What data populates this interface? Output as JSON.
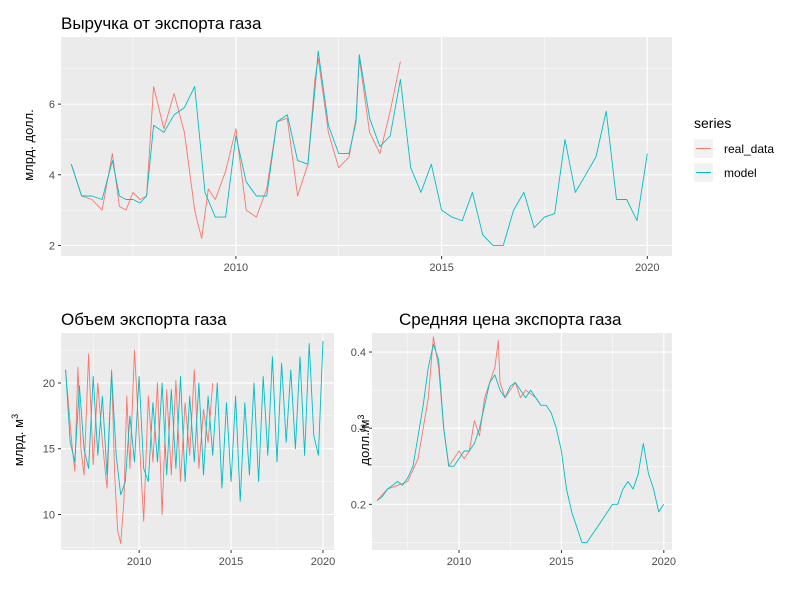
{
  "colors": {
    "real_data": "#F8766D",
    "model": "#00BFC4",
    "panel_bg": "#EBEBEB",
    "grid": "#FFFFFF"
  },
  "legend": {
    "title": "series",
    "items": [
      {
        "label": "real_data",
        "color": "#F8766D"
      },
      {
        "label": "model",
        "color": "#00BFC4"
      }
    ]
  },
  "chart_data": [
    {
      "type": "line",
      "title": "Выручка от экспорта газа",
      "ylabel": "млрд. долл.",
      "ylabel_sup": "",
      "xlim": [
        2005.75,
        2020.6
      ],
      "ylim": [
        1.7,
        7.9
      ],
      "xticks": [
        2010,
        2015,
        2020
      ],
      "yticks": [
        2,
        4,
        6
      ],
      "ytick_labels": [
        "2",
        "4",
        "6"
      ],
      "series": [
        {
          "name": "real_data",
          "x": [
            2006.0,
            2006.25,
            2006.5,
            2006.75,
            2007.0,
            2007.17,
            2007.33,
            2007.5,
            2007.67,
            2007.83,
            2008.0,
            2008.25,
            2008.5,
            2008.75,
            2009.0,
            2009.08,
            2009.17,
            2009.33,
            2009.5,
            2009.75,
            2010.0,
            2010.25,
            2010.5,
            2010.75,
            2011.0,
            2011.25,
            2011.5,
            2011.75,
            2011.92,
            2012.0,
            2012.25,
            2012.5,
            2012.75,
            2012.92,
            2013.0,
            2013.25,
            2013.5,
            2013.75,
            2014.0
          ],
          "values": [
            4.3,
            3.4,
            3.3,
            3.0,
            4.6,
            3.1,
            3.0,
            3.5,
            3.3,
            3.4,
            6.5,
            5.3,
            6.3,
            5.2,
            3.0,
            2.6,
            2.2,
            3.6,
            3.3,
            4.1,
            5.3,
            3.0,
            2.8,
            3.6,
            5.5,
            5.6,
            3.4,
            4.3,
            6.7,
            7.3,
            5.2,
            4.2,
            4.5,
            5.6,
            7.3,
            5.2,
            4.6,
            5.8,
            7.2
          ]
        },
        {
          "name": "model",
          "x": [
            2006.0,
            2006.25,
            2006.5,
            2006.75,
            2007.0,
            2007.17,
            2007.33,
            2007.5,
            2007.67,
            2007.83,
            2008.0,
            2008.25,
            2008.5,
            2008.75,
            2009.0,
            2009.25,
            2009.5,
            2009.75,
            2010.0,
            2010.25,
            2010.5,
            2010.75,
            2011.0,
            2011.25,
            2011.5,
            2011.75,
            2011.92,
            2012.0,
            2012.25,
            2012.5,
            2012.75,
            2012.92,
            2013.0,
            2013.25,
            2013.5,
            2013.75,
            2014.0,
            2014.25,
            2014.5,
            2014.75,
            2015.0,
            2015.25,
            2015.5,
            2015.75,
            2016.0,
            2016.25,
            2016.5,
            2016.75,
            2017.0,
            2017.25,
            2017.5,
            2017.75,
            2018.0,
            2018.25,
            2018.5,
            2018.75,
            2019.0,
            2019.25,
            2019.5,
            2019.75,
            2020.0
          ],
          "values": [
            4.3,
            3.4,
            3.4,
            3.3,
            4.4,
            3.4,
            3.3,
            3.3,
            3.2,
            3.4,
            5.4,
            5.2,
            5.7,
            5.9,
            6.5,
            3.5,
            2.8,
            2.8,
            5.1,
            3.8,
            3.4,
            3.4,
            5.5,
            5.7,
            4.4,
            4.3,
            6.4,
            7.5,
            5.4,
            4.6,
            4.6,
            5.5,
            7.4,
            5.6,
            4.8,
            5.1,
            6.7,
            4.2,
            3.5,
            4.3,
            3.0,
            2.8,
            2.7,
            3.5,
            2.3,
            2.0,
            2.0,
            3.0,
            3.5,
            2.5,
            2.8,
            2.9,
            5.0,
            3.5,
            4.0,
            4.5,
            5.8,
            3.3,
            3.3,
            2.7,
            4.6
          ]
        }
      ]
    },
    {
      "type": "line",
      "title": "Объем экспорта газа",
      "ylabel": "млрд. м",
      "ylabel_sup": "3",
      "xlim": [
        2005.75,
        2020.6
      ],
      "ylim": [
        7.3,
        23.8
      ],
      "xticks": [
        2010,
        2015,
        2020
      ],
      "yticks": [
        10,
        15,
        20
      ],
      "ytick_labels": [
        "10",
        "15",
        "20"
      ],
      "series": [
        {
          "name": "real_data",
          "x": [
            2006.0,
            2006.33,
            2006.5,
            2006.67,
            2006.83,
            2007.0,
            2007.25,
            2007.5,
            2007.75,
            2008.0,
            2008.25,
            2008.5,
            2008.67,
            2008.83,
            2009.0,
            2009.17,
            2009.33,
            2009.5,
            2009.75,
            2010.0,
            2010.25,
            2010.5,
            2010.75,
            2011.0,
            2011.25,
            2011.5,
            2011.75,
            2012.0,
            2012.25,
            2012.5,
            2012.75,
            2013.0,
            2013.25,
            2013.5,
            2013.75,
            2014.0
          ],
          "values": [
            21.0,
            15.5,
            13.3,
            21.2,
            15.0,
            13.0,
            22.2,
            13.8,
            20.0,
            15.5,
            12.0,
            21.0,
            13.0,
            8.8,
            7.8,
            11.0,
            19.0,
            13.5,
            22.5,
            16.0,
            9.5,
            19.0,
            14.0,
            20.0,
            10.0,
            19.5,
            13.0,
            20.2,
            12.5,
            18.5,
            14.5,
            21.0,
            13.5,
            18.0,
            15.5,
            20.0
          ]
        },
        {
          "name": "model",
          "x": [
            2006.0,
            2006.25,
            2006.5,
            2006.75,
            2007.0,
            2007.25,
            2007.5,
            2007.75,
            2008.0,
            2008.25,
            2008.5,
            2008.75,
            2009.0,
            2009.25,
            2009.5,
            2009.75,
            2010.0,
            2010.25,
            2010.5,
            2010.75,
            2011.0,
            2011.25,
            2011.5,
            2011.75,
            2012.0,
            2012.25,
            2012.5,
            2012.75,
            2013.0,
            2013.25,
            2013.5,
            2013.75,
            2014.0,
            2014.25,
            2014.5,
            2014.75,
            2015.0,
            2015.25,
            2015.5,
            2015.75,
            2016.0,
            2016.25,
            2016.5,
            2016.75,
            2017.0,
            2017.25,
            2017.5,
            2017.75,
            2018.0,
            2018.25,
            2018.5,
            2018.75,
            2019.0,
            2019.25,
            2019.5,
            2019.75,
            2020.0
          ],
          "values": [
            21.0,
            15.5,
            14.0,
            19.8,
            15.0,
            13.5,
            20.5,
            14.5,
            19.0,
            13.0,
            20.8,
            14.5,
            11.5,
            12.5,
            17.5,
            14.0,
            20.5,
            13.5,
            12.5,
            18.5,
            14.0,
            20.0,
            13.0,
            19.5,
            13.5,
            20.5,
            12.5,
            19.0,
            14.0,
            20.0,
            13.0,
            19.0,
            14.5,
            20.0,
            12.0,
            18.5,
            12.5,
            19.0,
            11.0,
            18.5,
            13.0,
            20.0,
            12.5,
            20.5,
            14.5,
            22.0,
            14.0,
            21.5,
            15.5,
            21.0,
            15.0,
            22.0,
            14.5,
            23.0,
            16.0,
            14.5,
            23.2
          ]
        }
      ]
    },
    {
      "type": "line",
      "title": "Средняя цена экспорта газа",
      "ylabel": "долл./м",
      "ylabel_sup": "3",
      "xlim": [
        2005.75,
        2020.4
      ],
      "ylim": [
        0.14,
        0.425
      ],
      "xticks": [
        2010,
        2015,
        2020
      ],
      "yticks": [
        0.2,
        0.3,
        0.4
      ],
      "ytick_labels": [
        "0.2",
        "0.3",
        "0.4"
      ],
      "series": [
        {
          "name": "real_data",
          "x": [
            2006.0,
            2006.5,
            2007.0,
            2007.5,
            2008.0,
            2008.5,
            2008.75,
            2009.0,
            2009.25,
            2009.5,
            2009.75,
            2010.0,
            2010.25,
            2010.5,
            2010.75,
            2011.0,
            2011.25,
            2011.5,
            2011.75,
            2011.92,
            2012.0,
            2012.25,
            2012.5,
            2012.75,
            2013.0,
            2013.25,
            2013.5,
            2013.75,
            2014.0
          ],
          "values": [
            0.205,
            0.22,
            0.225,
            0.23,
            0.26,
            0.34,
            0.42,
            0.38,
            0.3,
            0.25,
            0.26,
            0.27,
            0.26,
            0.27,
            0.31,
            0.29,
            0.34,
            0.36,
            0.38,
            0.415,
            0.36,
            0.34,
            0.35,
            0.36,
            0.34,
            0.35,
            0.345,
            0.34,
            0.33
          ]
        },
        {
          "name": "model",
          "x": [
            2006.0,
            2006.25,
            2006.5,
            2006.75,
            2007.0,
            2007.25,
            2007.5,
            2007.75,
            2008.0,
            2008.25,
            2008.5,
            2008.75,
            2009.0,
            2009.25,
            2009.5,
            2009.75,
            2010.0,
            2010.25,
            2010.5,
            2010.75,
            2011.0,
            2011.25,
            2011.5,
            2011.75,
            2012.0,
            2012.25,
            2012.5,
            2012.75,
            2013.0,
            2013.25,
            2013.5,
            2013.75,
            2014.0,
            2014.25,
            2014.5,
            2014.75,
            2015.0,
            2015.25,
            2015.5,
            2015.75,
            2016.0,
            2016.25,
            2016.5,
            2016.75,
            2017.0,
            2017.25,
            2017.5,
            2017.75,
            2018.0,
            2018.25,
            2018.5,
            2018.75,
            2019.0,
            2019.25,
            2019.5,
            2019.75,
            2020.0
          ],
          "values": [
            0.205,
            0.21,
            0.22,
            0.225,
            0.23,
            0.225,
            0.235,
            0.25,
            0.29,
            0.33,
            0.38,
            0.41,
            0.39,
            0.3,
            0.25,
            0.25,
            0.26,
            0.27,
            0.27,
            0.28,
            0.3,
            0.33,
            0.36,
            0.37,
            0.35,
            0.34,
            0.355,
            0.36,
            0.35,
            0.34,
            0.35,
            0.34,
            0.33,
            0.33,
            0.32,
            0.3,
            0.27,
            0.22,
            0.19,
            0.17,
            0.15,
            0.15,
            0.16,
            0.17,
            0.18,
            0.19,
            0.2,
            0.2,
            0.22,
            0.23,
            0.22,
            0.24,
            0.28,
            0.24,
            0.22,
            0.19,
            0.2
          ]
        }
      ]
    }
  ]
}
